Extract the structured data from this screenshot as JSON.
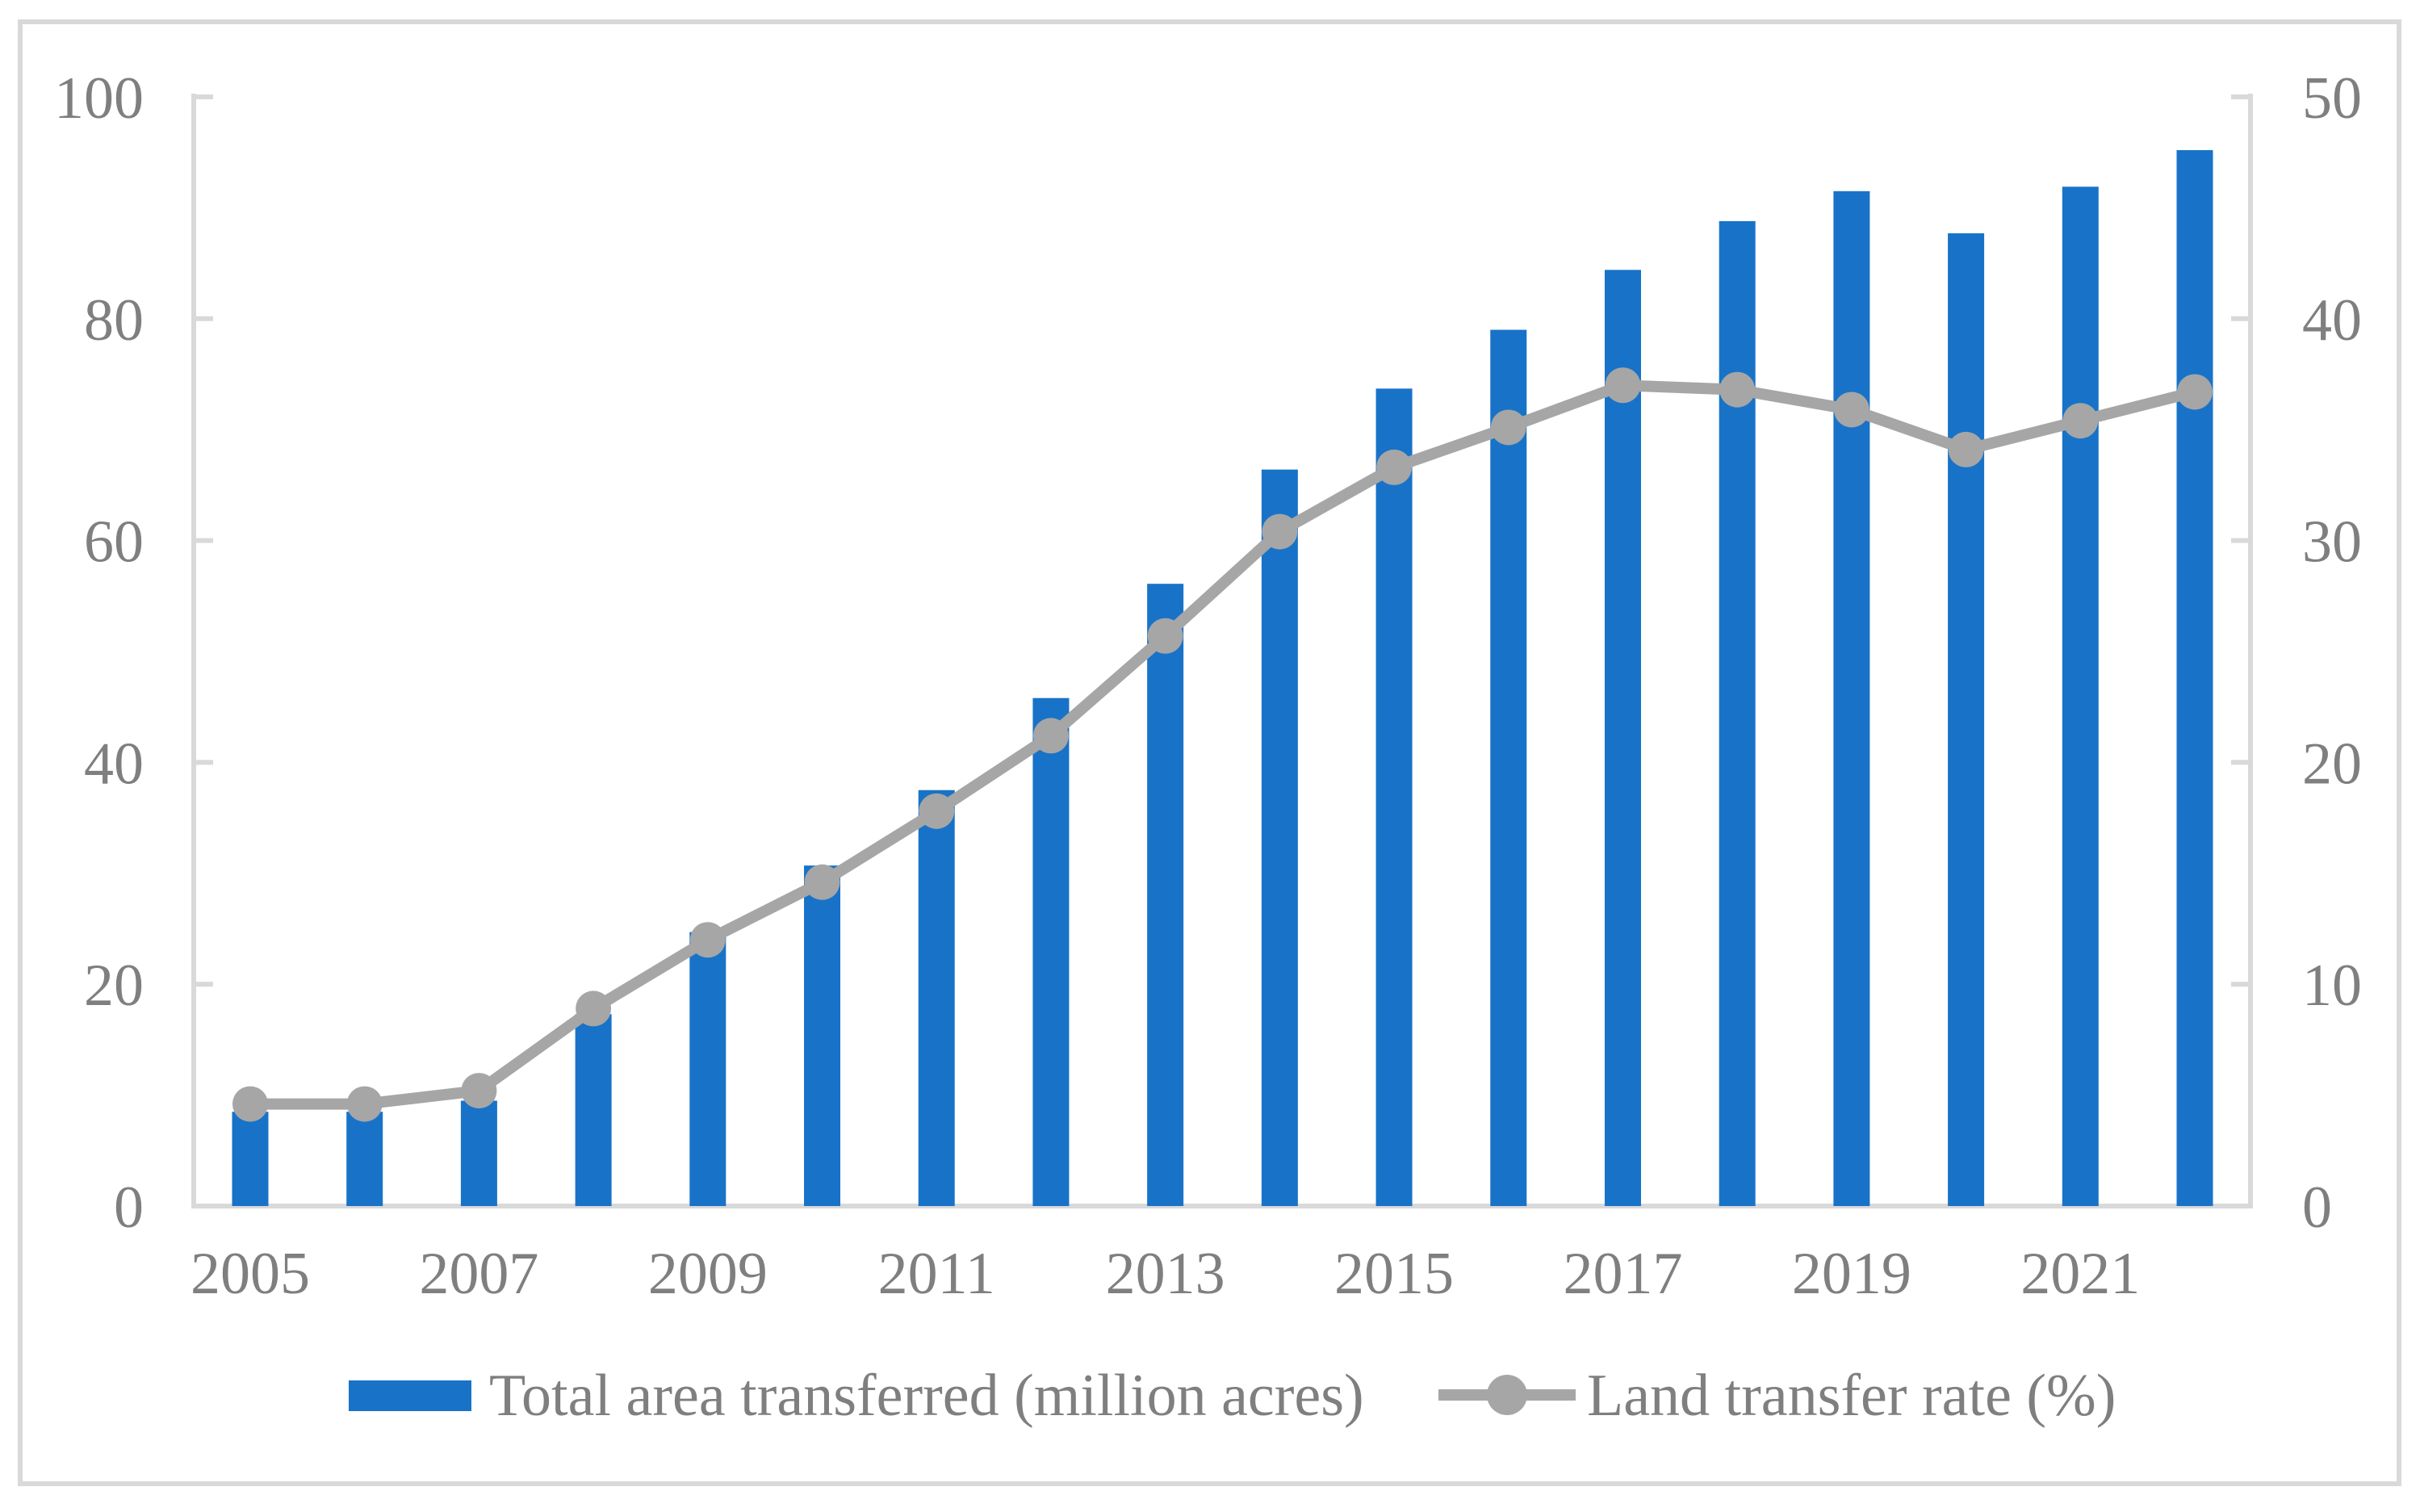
{
  "chart_data": {
    "type": "combo",
    "categories": [
      2005,
      2006,
      2007,
      2008,
      2009,
      2010,
      2011,
      2012,
      2013,
      2014,
      2015,
      2016,
      2017,
      2018,
      2019,
      2020,
      2021,
      2022
    ],
    "x_axis_tick_labels": [
      "2005",
      "2007",
      "2009",
      "2011",
      "2013",
      "2015",
      "2017",
      "2019",
      "2021"
    ],
    "series": [
      {
        "name": "Total area transferred (million acres)",
        "type": "bar",
        "axis": "left",
        "color": "#1873C8",
        "values": [
          8.5,
          8.5,
          9.5,
          17.3,
          24.7,
          30.7,
          37.5,
          45.8,
          56.1,
          66.4,
          73.7,
          79.0,
          84.4,
          88.8,
          91.5,
          87.7,
          91.9,
          95.2
        ]
      },
      {
        "name": "Land transfer rate (%)",
        "type": "line",
        "axis": "right",
        "color": "#A6A6A6",
        "values": [
          4.6,
          4.6,
          5.2,
          8.9,
          12.0,
          14.6,
          17.8,
          21.2,
          25.7,
          30.4,
          33.3,
          35.1,
          37.0,
          36.8,
          35.9,
          34.1,
          35.4,
          36.7
        ]
      }
    ],
    "left_axis": {
      "min": 0,
      "max": 100,
      "tick_labels": [
        "0",
        "20",
        "40",
        "60",
        "80",
        "100"
      ]
    },
    "right_axis": {
      "min": 0,
      "max": 50,
      "tick_labels": [
        "0",
        "10",
        "20",
        "30",
        "40",
        "50"
      ]
    },
    "grid": "off",
    "legend_position": "bottom",
    "title": "",
    "xlabel": "",
    "ylabel": ""
  },
  "legend": {
    "bar_label": "Total area transferred (million acres)",
    "line_label": "Land transfer rate (%)"
  },
  "colors": {
    "bar": "#1873C8",
    "line": "#A6A6A6",
    "axis_line": "#D9D9D9",
    "figure_border": "#D9D9D9",
    "text": "#7F7F7F",
    "background": "#FFFFFF"
  }
}
